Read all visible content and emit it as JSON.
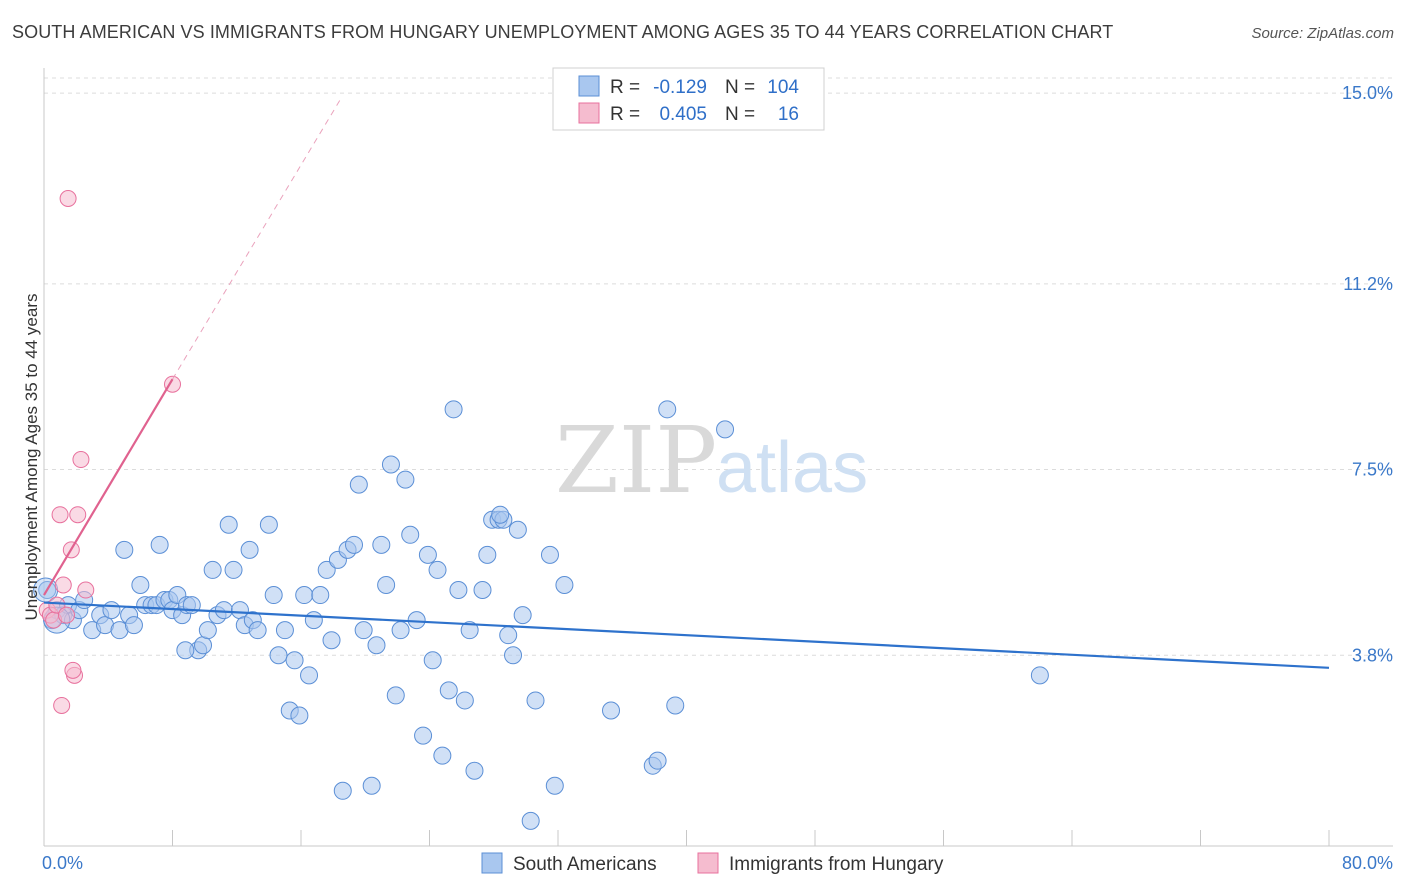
{
  "title": "SOUTH AMERICAN VS IMMIGRANTS FROM HUNGARY UNEMPLOYMENT AMONG AGES 35 TO 44 YEARS CORRELATION CHART",
  "source": "Source: ZipAtlas.com",
  "watermark": {
    "zip": "ZIP",
    "atlas": "atlas"
  },
  "colors": {
    "blue": "#5b8fd6",
    "blue_fill": "#a9c7ef",
    "pink": "#e8719d",
    "pink_fill": "#f5bccf",
    "axis_text": "#3a78c9"
  },
  "legend": {
    "blue": {
      "r_label": "R =",
      "r_value": "-0.129",
      "n_label": "N =",
      "n_value": "104"
    },
    "pink": {
      "r_label": "R =",
      "r_value": "0.405",
      "n_label": "N =",
      "n_value": "16"
    }
  },
  "bottom_legend": [
    "South Americans",
    "Immigrants from Hungary"
  ],
  "chart_data": {
    "type": "scatter",
    "title": "SOUTH AMERICAN VS IMMIGRANTS FROM HUNGARY UNEMPLOYMENT AMONG AGES 35 TO 44 YEARS CORRELATION CHART",
    "ylabel": "Unemployment Among Ages 35 to 44 years",
    "xlabel": "",
    "xlim": [
      0,
      80
    ],
    "ylim": [
      0,
      15.5
    ],
    "x_tick_labels": [
      "0.0%",
      "80.0%"
    ],
    "y_ticks": [
      3.8,
      7.5,
      11.2,
      15.0
    ],
    "y_tick_labels": [
      "3.8%",
      "7.5%",
      "11.2%",
      "15.0%"
    ],
    "grid": true,
    "series": [
      {
        "name": "South Americans",
        "color": "#5b8fd6",
        "trend": {
          "x": [
            0,
            80
          ],
          "y": [
            4.85,
            3.55
          ]
        },
        "points": [
          [
            0.2,
            5.1
          ],
          [
            0.5,
            4.5
          ],
          [
            0.8,
            4.7
          ],
          [
            1.2,
            4.6
          ],
          [
            1.5,
            4.8
          ],
          [
            1.8,
            4.5
          ],
          [
            2.2,
            4.7
          ],
          [
            2.5,
            4.9
          ],
          [
            3,
            4.3
          ],
          [
            3.5,
            4.6
          ],
          [
            3.8,
            4.4
          ],
          [
            4.2,
            4.7
          ],
          [
            4.7,
            4.3
          ],
          [
            5,
            5.9
          ],
          [
            5.3,
            4.6
          ],
          [
            5.6,
            4.4
          ],
          [
            6,
            5.2
          ],
          [
            6.3,
            4.8
          ],
          [
            6.7,
            4.8
          ],
          [
            7,
            4.8
          ],
          [
            7.2,
            6.0
          ],
          [
            7.5,
            4.9
          ],
          [
            7.8,
            4.9
          ],
          [
            8,
            4.7
          ],
          [
            8.3,
            5.0
          ],
          [
            8.6,
            4.6
          ],
          [
            8.9,
            4.8
          ],
          [
            9.2,
            4.8
          ],
          [
            9.6,
            3.9
          ],
          [
            9.9,
            4.0
          ],
          [
            10.2,
            4.3
          ],
          [
            10.5,
            5.5
          ],
          [
            10.8,
            4.6
          ],
          [
            11.2,
            4.7
          ],
          [
            11.5,
            6.4
          ],
          [
            11.8,
            5.5
          ],
          [
            12.2,
            4.7
          ],
          [
            12.5,
            4.4
          ],
          [
            12.8,
            5.9
          ],
          [
            13,
            4.5
          ],
          [
            13.3,
            4.3
          ],
          [
            14,
            6.4
          ],
          [
            14.3,
            5.0
          ],
          [
            14.6,
            3.8
          ],
          [
            15,
            4.3
          ],
          [
            15.3,
            2.7
          ],
          [
            15.6,
            3.7
          ],
          [
            15.9,
            2.6
          ],
          [
            16.2,
            5.0
          ],
          [
            16.5,
            3.4
          ],
          [
            16.8,
            4.5
          ],
          [
            17.2,
            5.0
          ],
          [
            17.6,
            5.5
          ],
          [
            17.9,
            4.1
          ],
          [
            18.3,
            5.7
          ],
          [
            18.6,
            1.1
          ],
          [
            18.9,
            5.9
          ],
          [
            19.3,
            6.0
          ],
          [
            19.6,
            7.2
          ],
          [
            19.9,
            4.3
          ],
          [
            20.4,
            1.2
          ],
          [
            20.7,
            4.0
          ],
          [
            21,
            6.0
          ],
          [
            21.3,
            5.2
          ],
          [
            21.6,
            7.6
          ],
          [
            21.9,
            3.0
          ],
          [
            22.2,
            4.3
          ],
          [
            22.5,
            7.3
          ],
          [
            22.8,
            6.2
          ],
          [
            23.2,
            4.5
          ],
          [
            23.6,
            2.2
          ],
          [
            23.9,
            5.8
          ],
          [
            24.2,
            3.7
          ],
          [
            24.5,
            5.5
          ],
          [
            24.8,
            1.8
          ],
          [
            25.2,
            3.1
          ],
          [
            25.5,
            8.7
          ],
          [
            25.8,
            5.1
          ],
          [
            26.2,
            2.9
          ],
          [
            26.5,
            4.3
          ],
          [
            26.8,
            1.5
          ],
          [
            27.3,
            5.1
          ],
          [
            27.6,
            5.8
          ],
          [
            27.9,
            6.5
          ],
          [
            28.3,
            6.5
          ],
          [
            28.6,
            6.5
          ],
          [
            28.9,
            4.2
          ],
          [
            29.2,
            3.8
          ],
          [
            29.5,
            6.3
          ],
          [
            29.8,
            4.6
          ],
          [
            30.3,
            0.5
          ],
          [
            30.6,
            2.9
          ],
          [
            31.5,
            5.8
          ],
          [
            31.8,
            1.2
          ],
          [
            32.4,
            5.2
          ],
          [
            35.3,
            2.7
          ],
          [
            37.9,
            1.6
          ],
          [
            38.2,
            1.7
          ],
          [
            38.8,
            8.7
          ],
          [
            39.3,
            2.8
          ],
          [
            42.4,
            8.3
          ],
          [
            62,
            3.4
          ],
          [
            28.4,
            6.6
          ],
          [
            8.8,
            3.9
          ]
        ]
      },
      {
        "name": "Immigrants from Hungary",
        "color": "#e8719d",
        "trend": {
          "x": [
            0,
            8
          ],
          "y": [
            5.0,
            9.3
          ]
        },
        "trend_extension": {
          "x": [
            8,
            18.5
          ],
          "y": [
            9.3,
            14.9
          ]
        },
        "points": [
          [
            0.2,
            4.7
          ],
          [
            0.4,
            4.6
          ],
          [
            0.6,
            4.5
          ],
          [
            0.8,
            4.8
          ],
          [
            1.0,
            6.6
          ],
          [
            1.2,
            5.2
          ],
          [
            1.4,
            4.6
          ],
          [
            1.5,
            12.9
          ],
          [
            1.7,
            5.9
          ],
          [
            1.9,
            3.4
          ],
          [
            2.1,
            6.6
          ],
          [
            2.3,
            7.7
          ],
          [
            2.6,
            5.1
          ],
          [
            8.0,
            9.2
          ],
          [
            1.1,
            2.8
          ],
          [
            1.8,
            3.5
          ]
        ]
      }
    ]
  }
}
